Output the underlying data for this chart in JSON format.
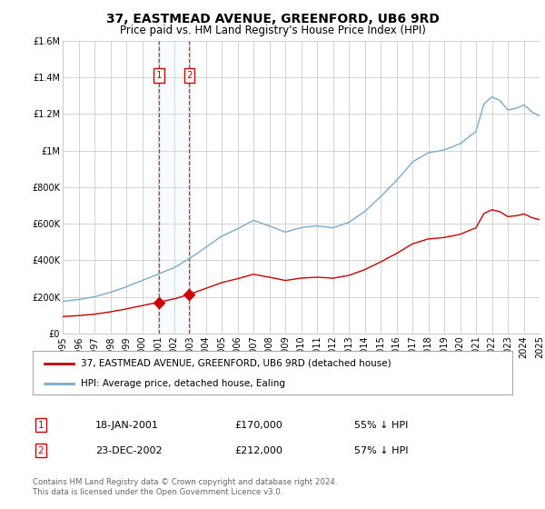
{
  "title": "37, EASTMEAD AVENUE, GREENFORD, UB6 9RD",
  "subtitle": "Price paid vs. HM Land Registry's House Price Index (HPI)",
  "legend_label_red": "37, EASTMEAD AVENUE, GREENFORD, UB6 9RD (detached house)",
  "legend_label_blue": "HPI: Average price, detached house, Ealing",
  "transaction1_date": "18-JAN-2001",
  "transaction1_price": 170000,
  "transaction1_label": "£170,000",
  "transaction1_pct": "55% ↓ HPI",
  "transaction2_date": "23-DEC-2002",
  "transaction2_price": 212000,
  "transaction2_label": "£212,000",
  "transaction2_pct": "57% ↓ HPI",
  "footnote": "Contains HM Land Registry data © Crown copyright and database right 2024.\nThis data is licensed under the Open Government Licence v3.0.",
  "transaction1_x": 2001.05,
  "transaction2_x": 2002.97,
  "xlim": [
    1995,
    2025
  ],
  "ylim": [
    0,
    1600000
  ],
  "yticks": [
    0,
    200000,
    400000,
    600000,
    800000,
    1000000,
    1200000,
    1400000,
    1600000
  ],
  "ytick_labels": [
    "£0",
    "£200K",
    "£400K",
    "£600K",
    "£800K",
    "£1M",
    "£1.2M",
    "£1.4M",
    "£1.6M"
  ],
  "background_color": "#ffffff",
  "plot_bg_color": "#ffffff",
  "grid_color": "#cccccc",
  "red_color": "#cc0000",
  "blue_color": "#7aabcc",
  "marker_box_color": "#cc0000",
  "shade_color": "#ddeeff",
  "title_fontsize": 10,
  "subtitle_fontsize": 8.5,
  "axis_fontsize": 7
}
